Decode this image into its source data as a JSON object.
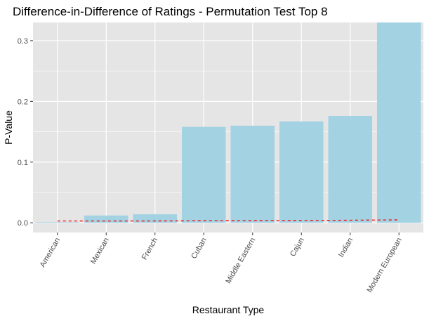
{
  "chart_data": {
    "type": "bar",
    "title": "Difference-in-Difference of Ratings - Permutation Test Top 8",
    "xlabel": "Restaurant Type",
    "ylabel": "P-Value",
    "categories": [
      "American",
      "Mexican",
      "French",
      "Cuban",
      "Middle Eastern",
      "Cajun",
      "Indian",
      "Modern European"
    ],
    "values": [
      0.001,
      0.012,
      0.014,
      0.158,
      0.16,
      0.167,
      0.176,
      0.33
    ],
    "threshold_line": {
      "style": "dashed",
      "color": "#ff0000",
      "values": [
        0.003,
        0.003,
        0.003,
        0.0033,
        0.0035,
        0.0038,
        0.0042,
        0.0048
      ]
    },
    "ylim": [
      -0.016,
      0.33
    ],
    "yticks": [
      0.0,
      0.1,
      0.2,
      0.3
    ],
    "ytick_labels": [
      "0.0",
      "0.1",
      "0.2",
      "0.3"
    ],
    "grid": true,
    "bar_color": "#a3d2e3",
    "panel_color": "#e5e5e5",
    "grid_color": "#ffffff"
  }
}
